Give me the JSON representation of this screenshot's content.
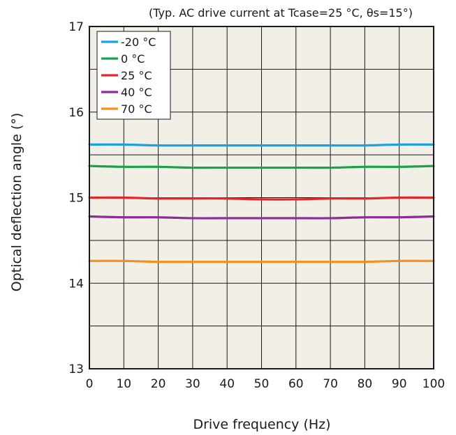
{
  "chart_data": {
    "type": "line",
    "title": "(Typ. AC drive current at Tcase=25 °C, θs=15°)",
    "xlabel": "Drive frequency (Hz)",
    "ylabel": "Optical deflection angle (°)",
    "xlim": [
      0,
      100
    ],
    "ylim": [
      13,
      17
    ],
    "x_ticks": [
      "0",
      "10",
      "20",
      "30",
      "40",
      "50",
      "60",
      "70",
      "80",
      "90",
      "100"
    ],
    "y_ticks": [
      "13",
      "14",
      "15",
      "16",
      "17"
    ],
    "grid": true,
    "legend_position": "top-left",
    "background_color": "#f1efe6",
    "x": [
      0,
      10,
      20,
      30,
      40,
      50,
      60,
      70,
      80,
      90,
      100
    ],
    "series": [
      {
        "name": "-20 °C",
        "color": "#18a3e0",
        "values": [
          15.62,
          15.62,
          15.61,
          15.61,
          15.61,
          15.61,
          15.61,
          15.61,
          15.61,
          15.62,
          15.62
        ]
      },
      {
        "name": "0 °C",
        "color": "#16a34a",
        "values": [
          15.37,
          15.36,
          15.36,
          15.35,
          15.35,
          15.35,
          15.35,
          15.35,
          15.36,
          15.36,
          15.37
        ]
      },
      {
        "name": "25 °C",
        "color": "#e3262a",
        "values": [
          15.0,
          15.0,
          14.99,
          14.99,
          14.99,
          14.98,
          14.98,
          14.99,
          14.99,
          15.0,
          15.0
        ]
      },
      {
        "name": "40 °C",
        "color": "#8e2a9a",
        "values": [
          14.78,
          14.77,
          14.77,
          14.76,
          14.76,
          14.76,
          14.76,
          14.76,
          14.77,
          14.77,
          14.78
        ]
      },
      {
        "name": "70 °C",
        "color": "#f5901e",
        "values": [
          14.26,
          14.26,
          14.25,
          14.25,
          14.25,
          14.25,
          14.25,
          14.25,
          14.25,
          14.26,
          14.26
        ]
      }
    ]
  }
}
